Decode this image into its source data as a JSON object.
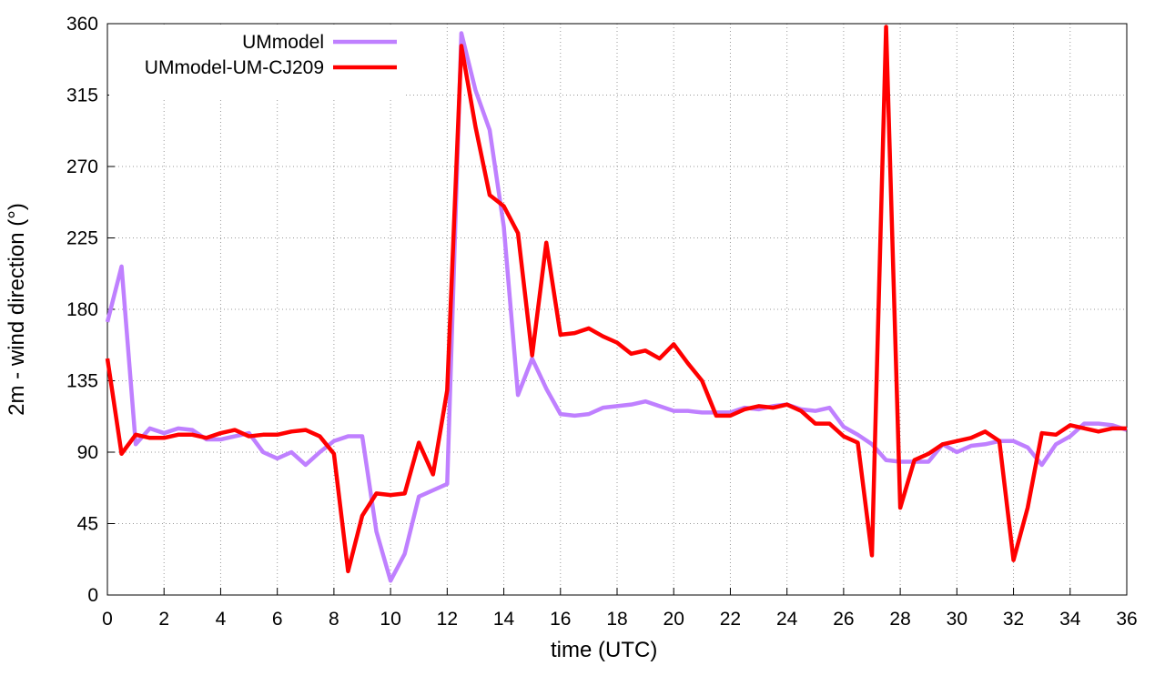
{
  "chart_data": {
    "type": "line",
    "xlabel": "time (UTC)",
    "ylabel": "2m - wind direction (°)",
    "x": [
      0,
      0.5,
      1,
      1.5,
      2,
      2.5,
      3,
      3.5,
      4,
      4.5,
      5,
      5.5,
      6,
      6.5,
      7,
      7.5,
      8,
      8.5,
      9,
      9.5,
      10,
      10.5,
      11,
      11.5,
      12,
      12.5,
      13,
      13.5,
      14,
      14.5,
      15,
      15.5,
      16,
      16.5,
      17,
      17.5,
      18,
      18.5,
      19,
      19.5,
      20,
      20.5,
      21,
      21.5,
      22,
      22.5,
      23,
      23.5,
      24,
      24.5,
      25,
      25.5,
      26,
      26.5,
      27,
      27.5,
      28,
      28.5,
      29,
      29.5,
      30,
      30.5,
      31,
      31.5,
      32,
      32.5,
      33,
      33.5,
      34,
      34.5,
      35,
      35.5,
      36
    ],
    "series": [
      {
        "name": "UMmodel",
        "color": "#bf80ff",
        "values": [
          172,
          207,
          95,
          105,
          102,
          105,
          104,
          98,
          98,
          100,
          102,
          90,
          86,
          90,
          82,
          90,
          97,
          100,
          100,
          40,
          9,
          26,
          62,
          66,
          70,
          354,
          318,
          293,
          232,
          126,
          149,
          130,
          114,
          113,
          114,
          118,
          119,
          120,
          122,
          119,
          116,
          116,
          115,
          115,
          115,
          118,
          117,
          119,
          120,
          117,
          116,
          118,
          106,
          101,
          95,
          85,
          84,
          84,
          84,
          95,
          90,
          94,
          95,
          97,
          97,
          93,
          82,
          95,
          100,
          108,
          108,
          107,
          104
        ]
      },
      {
        "name": "UMmodel-UM-CJ209",
        "color": "#ff0000",
        "values": [
          149,
          89,
          101,
          99,
          99,
          101,
          101,
          99,
          102,
          104,
          100,
          101,
          101,
          103,
          104,
          100,
          89,
          15,
          50,
          64,
          63,
          64,
          96,
          76,
          129,
          346,
          295,
          252,
          245,
          228,
          151,
          222,
          164,
          165,
          168,
          163,
          159,
          152,
          154,
          149,
          158,
          146,
          135,
          113,
          113,
          117,
          119,
          118,
          120,
          116,
          108,
          108,
          100,
          96,
          25,
          358,
          55,
          85,
          89,
          95,
          97,
          99,
          103,
          97,
          22,
          55,
          102,
          101,
          107,
          105,
          103,
          105,
          105
        ]
      }
    ],
    "xlim": [
      0,
      36
    ],
    "xticks": [
      0,
      2,
      4,
      6,
      8,
      10,
      12,
      14,
      16,
      18,
      20,
      22,
      24,
      26,
      28,
      30,
      32,
      34,
      36
    ],
    "ylim": [
      0,
      360
    ],
    "yticks": [
      0,
      45,
      90,
      135,
      180,
      225,
      270,
      315,
      360
    ],
    "grid": true,
    "legend": "upper left"
  }
}
